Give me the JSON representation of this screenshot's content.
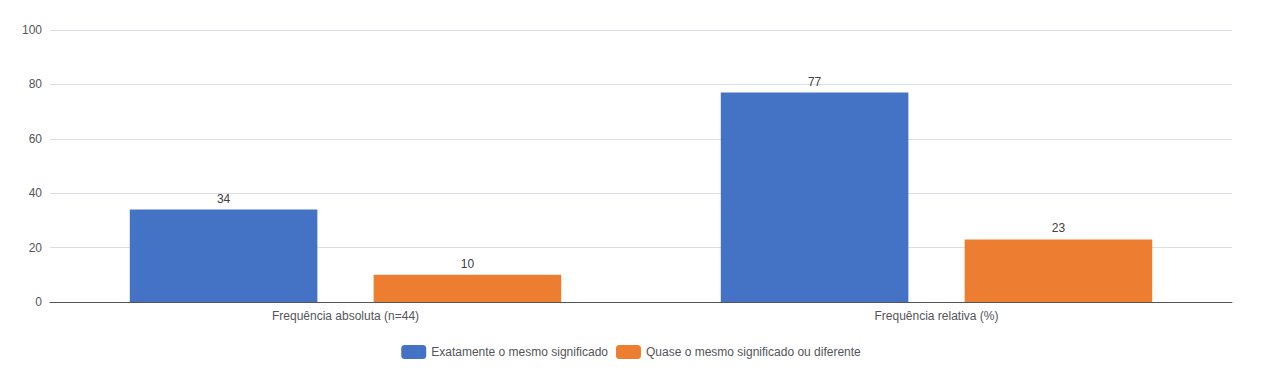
{
  "chart_data": {
    "type": "bar",
    "categories": [
      "Frequência absoluta (n=44)",
      "Frequência relativa (%)"
    ],
    "series": [
      {
        "name": "Exatamente o mesmo significado",
        "color": "#4472C4",
        "values": [
          34,
          77
        ]
      },
      {
        "name": "Quase o mesmo significado ou diferente",
        "color": "#ED7D31",
        "values": [
          10,
          23
        ]
      }
    ],
    "ylim": [
      0,
      100
    ],
    "yticks": [
      0,
      20,
      40,
      60,
      80,
      100
    ],
    "grid": true,
    "legend": "bottom",
    "data_labels": true
  }
}
